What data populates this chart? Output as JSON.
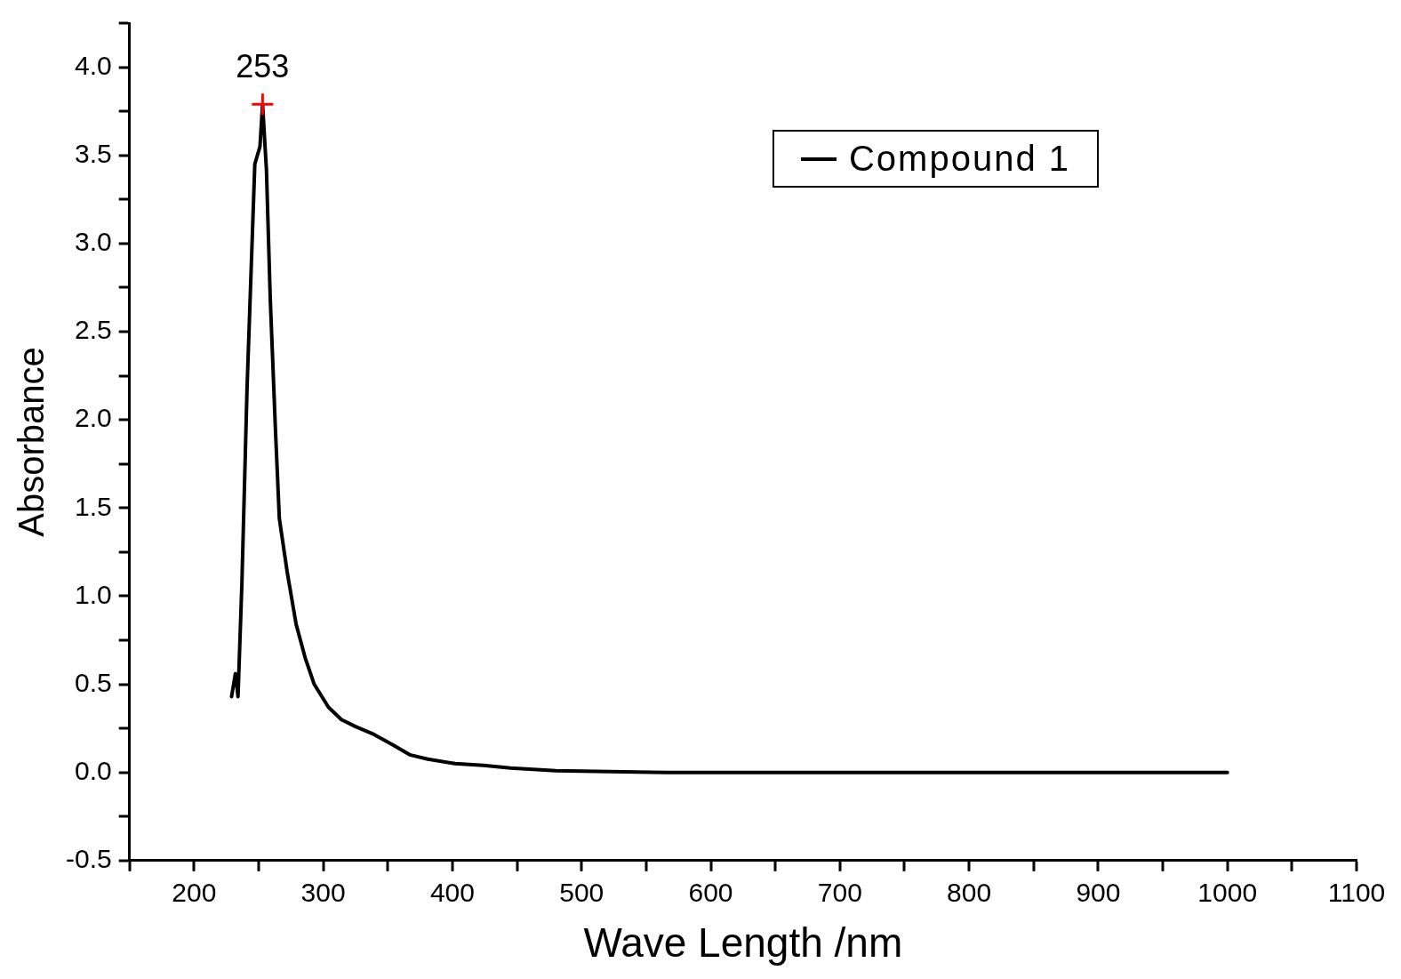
{
  "chart_data": {
    "type": "line",
    "xlabel": "Wave Length /nm",
    "ylabel": "Absorbance",
    "xlim": [
      150,
      1100
    ],
    "xticks": [
      {
        "value": 150,
        "label": null
      },
      200,
      {
        "value": 250,
        "label": null
      },
      300,
      {
        "value": 350,
        "label": null
      },
      400,
      {
        "value": 450,
        "label": null
      },
      500,
      {
        "value": 550,
        "label": null
      },
      600,
      {
        "value": 650,
        "label": null
      },
      700,
      {
        "value": 750,
        "label": null
      },
      800,
      {
        "value": 850,
        "label": null
      },
      900,
      {
        "value": 950,
        "label": null
      },
      1000,
      {
        "value": 1050,
        "label": null
      },
      1100
    ],
    "ylim": [
      -0.5,
      4.25
    ],
    "yticks": [
      {
        "value": -0.5,
        "label": "-0.5"
      },
      {
        "value": -0.25,
        "label": null
      },
      {
        "value": 0,
        "label": "0.0"
      },
      {
        "value": 0.25,
        "label": null
      },
      {
        "value": 0.5,
        "label": "0.5"
      },
      {
        "value": 0.75,
        "label": null
      },
      {
        "value": 1,
        "label": "1.0"
      },
      {
        "value": 1.25,
        "label": null
      },
      {
        "value": 1.5,
        "label": "1.5"
      },
      {
        "value": 1.75,
        "label": null
      },
      {
        "value": 2,
        "label": "2.0"
      },
      {
        "value": 2.25,
        "label": null
      },
      {
        "value": 2.5,
        "label": "2.5"
      },
      {
        "value": 2.75,
        "label": null
      },
      {
        "value": 3,
        "label": "3.0"
      },
      {
        "value": 3.25,
        "label": null
      },
      {
        "value": 3.5,
        "label": "3.5"
      },
      {
        "value": 3.75,
        "label": null
      },
      {
        "value": 4,
        "label": "4.0"
      },
      {
        "value": 4.25,
        "label": null
      }
    ],
    "grid": false,
    "legend": "top right",
    "series": [
      {
        "name": "Compound 1",
        "color": "#000000",
        "marker": "none",
        "line_style": "solid",
        "x": [
          229,
          232,
          234,
          237,
          241,
          247,
          251,
          253,
          256,
          259,
          263,
          266,
          272,
          279,
          286,
          293,
          304,
          314,
          325,
          338,
          353,
          367,
          381,
          402,
          424,
          445,
          480,
          522,
          565,
          1000
        ],
        "values": [
          0.43,
          0.56,
          0.43,
          1.07,
          2.18,
          3.45,
          3.55,
          3.79,
          3.42,
          2.68,
          1.94,
          1.44,
          1.14,
          0.84,
          0.65,
          0.5,
          0.37,
          0.3,
          0.26,
          0.22,
          0.16,
          0.1,
          0.075,
          0.05,
          0.04,
          0.025,
          0.01,
          0.005,
          0,
          0
        ]
      },
      {
        "type": "scatter",
        "marker": "cross",
        "color": "#ff0000",
        "x": [
          253
        ],
        "values": [
          3.79
        ]
      }
    ],
    "annotations": [
      {
        "text": "253",
        "x": 253,
        "y": 3.79
      }
    ]
  }
}
